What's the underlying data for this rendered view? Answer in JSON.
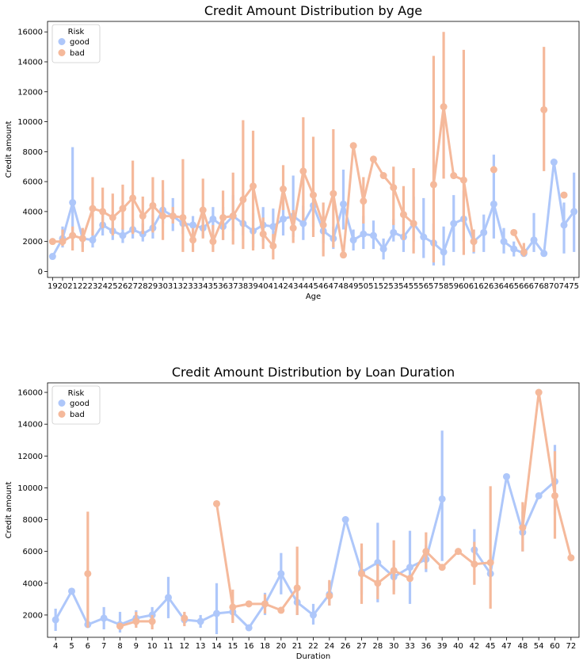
{
  "colors": {
    "good": "#aec7fa",
    "bad": "#f5b99b"
  },
  "chart_data": [
    {
      "type": "line",
      "title": "Credit Amount Distribution by Age",
      "xlabel": "Age",
      "ylabel": "Credit amount",
      "ylim": [
        -400,
        16700
      ],
      "yticks": [
        0,
        2000,
        4000,
        6000,
        8000,
        10000,
        12000,
        14000,
        16000
      ],
      "categories": [
        "19",
        "20",
        "21",
        "22",
        "23",
        "24",
        "25",
        "26",
        "27",
        "28",
        "29",
        "30",
        "31",
        "32",
        "33",
        "34",
        "35",
        "36",
        "37",
        "38",
        "39",
        "40",
        "41",
        "42",
        "43",
        "44",
        "45",
        "46",
        "47",
        "48",
        "49",
        "50",
        "51",
        "52",
        "53",
        "54",
        "55",
        "56",
        "57",
        "58",
        "59",
        "60",
        "61",
        "62",
        "63",
        "64",
        "65",
        "66",
        "67",
        "68",
        "70",
        "74",
        "75"
      ],
      "legend": {
        "title": "Risk",
        "position": "upper left",
        "entries": [
          "good",
          "bad"
        ]
      },
      "series": [
        {
          "name": "good",
          "values": [
            1000,
            2200,
            4600,
            2200,
            2100,
            3100,
            2700,
            2400,
            2800,
            2500,
            2900,
            4100,
            3700,
            3200,
            3100,
            2900,
            3500,
            3000,
            3700,
            3200,
            2700,
            3100,
            3000,
            3500,
            3700,
            3200,
            4400,
            2700,
            2200,
            4500,
            2100,
            2500,
            2400,
            1500,
            2600,
            2300,
            3200,
            2300,
            1900,
            1300,
            3200,
            3500,
            2000,
            2600,
            4500,
            2000,
            1500,
            1200,
            2100,
            1200,
            7300,
            3100,
            4000
          ],
          "ci_low": [
            null,
            1600,
            2200,
            1600,
            1600,
            2400,
            2100,
            1900,
            2200,
            2000,
            2200,
            3200,
            2700,
            2500,
            2400,
            2300,
            2600,
            2100,
            2700,
            2400,
            1600,
            2000,
            1800,
            2400,
            2300,
            2100,
            3000,
            1900,
            1500,
            2800,
            1400,
            1500,
            1500,
            800,
            2000,
            1300,
            2000,
            900,
            400,
            400,
            1300,
            2000,
            1200,
            1300,
            2200,
            1200,
            1000,
            1000,
            1300,
            null,
            null,
            1200,
            1300
          ],
          "ci_high": [
            null,
            3000,
            8300,
            2900,
            2800,
            3900,
            3400,
            2900,
            3500,
            3200,
            3800,
            5400,
            4900,
            4100,
            3700,
            3700,
            4300,
            4300,
            5100,
            4100,
            3900,
            4300,
            4200,
            4800,
            6400,
            4400,
            5500,
            3700,
            3000,
            6800,
            2800,
            3700,
            3400,
            2200,
            3500,
            3800,
            5000,
            4900,
            3200,
            3000,
            5100,
            5400,
            2800,
            3800,
            7800,
            2900,
            2000,
            1400,
            3900,
            null,
            null,
            4600,
            6600
          ]
        },
        {
          "name": "bad",
          "values": [
            2000,
            2000,
            2400,
            2200,
            4200,
            4000,
            3600,
            4200,
            4900,
            3700,
            4400,
            3700,
            3700,
            3600,
            2100,
            4100,
            2000,
            3600,
            3700,
            4800,
            5700,
            2500,
            1700,
            5500,
            2900,
            6700,
            5100,
            3100,
            5200,
            1100,
            8400,
            4700,
            7500,
            6400,
            5600,
            3800,
            3200,
            null,
            5800,
            11000,
            6400,
            6100,
            2000,
            null,
            6800,
            null,
            2600,
            1300,
            null,
            10800,
            null,
            5100,
            null
          ],
          "ci_low": [
            null,
            1700,
            1400,
            1300,
            2400,
            2900,
            2400,
            2800,
            2500,
            2500,
            2600,
            2100,
            3200,
            1300,
            1300,
            2200,
            1300,
            2100,
            1800,
            1500,
            1400,
            1500,
            800,
            4100,
            1900,
            3400,
            2300,
            1000,
            1600,
            null,
            null,
            3200,
            null,
            null,
            3100,
            2100,
            1200,
            null,
            600,
            6200,
            null,
            1100,
            1300,
            null,
            null,
            null,
            null,
            1000,
            null,
            6700,
            null,
            null,
            null
          ],
          "ci_high": [
            null,
            2800,
            3000,
            2900,
            6300,
            5600,
            5200,
            5800,
            7400,
            5000,
            6300,
            6100,
            4300,
            7500,
            2900,
            6200,
            3100,
            5400,
            6600,
            10100,
            9400,
            3600,
            2500,
            7100,
            4100,
            10300,
            9000,
            4600,
            9500,
            null,
            null,
            6300,
            null,
            null,
            7000,
            5700,
            6900,
            null,
            14400,
            16000,
            null,
            14800,
            2800,
            null,
            null,
            null,
            null,
            1900,
            null,
            15000,
            null,
            null,
            null
          ]
        }
      ]
    },
    {
      "type": "line",
      "title": "Credit Amount Distribution by Loan Duration",
      "xlabel": "Duration",
      "ylabel": "Credit amount",
      "ylim": [
        600,
        16600
      ],
      "yticks": [
        2000,
        4000,
        6000,
        8000,
        10000,
        12000,
        14000,
        16000
      ],
      "categories": [
        "4",
        "5",
        "6",
        "7",
        "8",
        "9",
        "10",
        "11",
        "12",
        "13",
        "14",
        "15",
        "16",
        "18",
        "20",
        "21",
        "22",
        "24",
        "26",
        "27",
        "28",
        "30",
        "33",
        "36",
        "39",
        "40",
        "42",
        "45",
        "47",
        "48",
        "54",
        "60",
        "72"
      ],
      "legend": {
        "title": "Risk",
        "position": "upper left",
        "entries": [
          "good",
          "bad"
        ]
      },
      "series": [
        {
          "name": "good",
          "values": [
            1700,
            3500,
            1400,
            1800,
            1400,
            1800,
            2000,
            3100,
            1700,
            1600,
            2100,
            2200,
            1200,
            2700,
            4600,
            2800,
            2000,
            3300,
            8000,
            4700,
            5300,
            4400,
            5000,
            5500,
            9300,
            null,
            6100,
            4600,
            10700,
            7200,
            9500,
            10400,
            null
          ],
          "ci_low": [
            1000,
            null,
            1200,
            1100,
            900,
            1300,
            1500,
            1800,
            1400,
            1200,
            800,
            1700,
            null,
            2000,
            3300,
            2000,
            1400,
            2600,
            null,
            3300,
            2800,
            3500,
            2700,
            4700,
            5400,
            null,
            5100,
            null,
            null,
            6000,
            null,
            8300,
            null
          ],
          "ci_high": [
            2400,
            null,
            1700,
            2500,
            2200,
            2300,
            2500,
            4400,
            2100,
            2000,
            4000,
            2800,
            null,
            3400,
            5900,
            3700,
            2700,
            4100,
            null,
            6200,
            7800,
            5300,
            7300,
            6400,
            13600,
            null,
            7400,
            null,
            null,
            8500,
            null,
            12700,
            null
          ]
        },
        {
          "name": "bad",
          "values": [
            null,
            null,
            4600,
            null,
            1300,
            1600,
            1600,
            null,
            1800,
            null,
            9000,
            2500,
            2700,
            2700,
            2300,
            3700,
            null,
            3200,
            null,
            4600,
            4000,
            4800,
            4300,
            6000,
            5000,
            6000,
            5200,
            5300,
            null,
            7500,
            16000,
            9500,
            5600
          ],
          "ci_low": [
            null,
            null,
            1200,
            null,
            null,
            1200,
            1100,
            null,
            1300,
            null,
            null,
            1500,
            null,
            2100,
            null,
            2000,
            null,
            2600,
            null,
            2700,
            3000,
            3300,
            null,
            4900,
            null,
            null,
            3900,
            2400,
            null,
            6000,
            null,
            6800,
            null
          ],
          "ci_high": [
            null,
            null,
            8500,
            null,
            null,
            2200,
            2000,
            null,
            2200,
            null,
            null,
            3600,
            null,
            3300,
            null,
            6300,
            null,
            4200,
            null,
            6500,
            5200,
            6700,
            null,
            7200,
            null,
            null,
            6600,
            10100,
            null,
            9100,
            null,
            12300,
            null
          ]
        }
      ]
    }
  ]
}
